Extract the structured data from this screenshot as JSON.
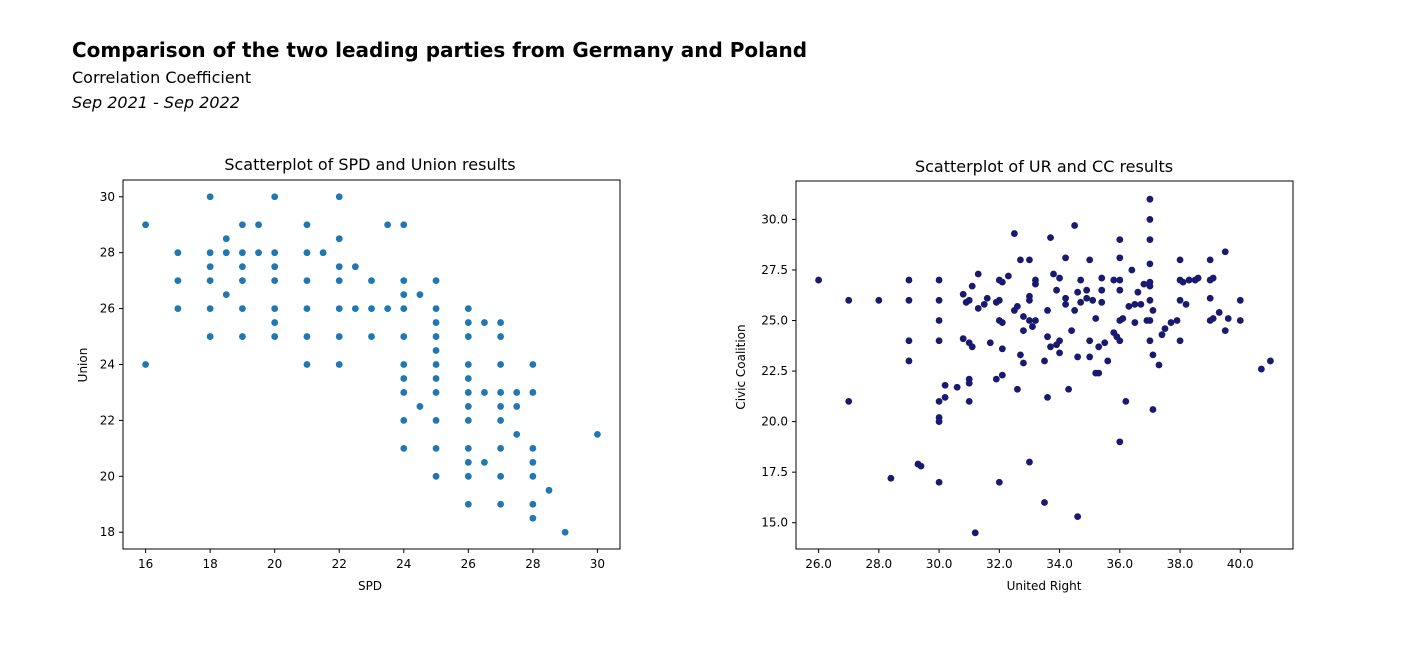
{
  "header": {
    "title": "Comparison of the two leading parties from Germany and Poland",
    "subtitle": "Correlation Coefficient",
    "period": "Sep 2021 - Sep 2022"
  },
  "chart_data": [
    {
      "type": "scatter",
      "title": "Scatterplot of SPD and Union results",
      "xlabel": "SPD",
      "ylabel": "Union",
      "xlim": [
        15.3,
        30.7
      ],
      "ylim": [
        17.4,
        30.6
      ],
      "xticks": [
        16,
        18,
        20,
        22,
        24,
        26,
        28,
        30
      ],
      "yticks": [
        18,
        20,
        22,
        24,
        26,
        28,
        30
      ],
      "tick_format": "int",
      "color": "#1f77b4",
      "points": [
        [
          16,
          29
        ],
        [
          16,
          24
        ],
        [
          17,
          28
        ],
        [
          17,
          27
        ],
        [
          17,
          26
        ],
        [
          18,
          30
        ],
        [
          18,
          28
        ],
        [
          18,
          27.5
        ],
        [
          18,
          27
        ],
        [
          18,
          26
        ],
        [
          18,
          25
        ],
        [
          18.5,
          28.5
        ],
        [
          18.5,
          28
        ],
        [
          18.5,
          26.5
        ],
        [
          19,
          29
        ],
        [
          19,
          28
        ],
        [
          19,
          27.5
        ],
        [
          19,
          27
        ],
        [
          19,
          26
        ],
        [
          19,
          25
        ],
        [
          19.5,
          29
        ],
        [
          19.5,
          28
        ],
        [
          20,
          30
        ],
        [
          20,
          28
        ],
        [
          20,
          27.5
        ],
        [
          20,
          27
        ],
        [
          20,
          26
        ],
        [
          20,
          25.5
        ],
        [
          20,
          25
        ],
        [
          21,
          29
        ],
        [
          21,
          28
        ],
        [
          21,
          27
        ],
        [
          21,
          26
        ],
        [
          21,
          25
        ],
        [
          21,
          24
        ],
        [
          21.5,
          28
        ],
        [
          22,
          30
        ],
        [
          22,
          28.5
        ],
        [
          22,
          27.5
        ],
        [
          22,
          27
        ],
        [
          22,
          26
        ],
        [
          22,
          25
        ],
        [
          22,
          24
        ],
        [
          22.5,
          27.5
        ],
        [
          22.5,
          26
        ],
        [
          23,
          27
        ],
        [
          23,
          26
        ],
        [
          23,
          25
        ],
        [
          23.5,
          29
        ],
        [
          23.5,
          26
        ],
        [
          24,
          29
        ],
        [
          24,
          27
        ],
        [
          24,
          26.5
        ],
        [
          24,
          26
        ],
        [
          24,
          25
        ],
        [
          24,
          24
        ],
        [
          24,
          23.5
        ],
        [
          24,
          23
        ],
        [
          24,
          22
        ],
        [
          24,
          21
        ],
        [
          24.5,
          26.5
        ],
        [
          24.5,
          22.5
        ],
        [
          25,
          27
        ],
        [
          25,
          26
        ],
        [
          25,
          25.5
        ],
        [
          25,
          25
        ],
        [
          25,
          24.5
        ],
        [
          25,
          24
        ],
        [
          25,
          23.5
        ],
        [
          25,
          23
        ],
        [
          25,
          22
        ],
        [
          25,
          21
        ],
        [
          25,
          20
        ],
        [
          26,
          26
        ],
        [
          26,
          25.5
        ],
        [
          26,
          25
        ],
        [
          26,
          24
        ],
        [
          26,
          23.5
        ],
        [
          26,
          23
        ],
        [
          26,
          22.5
        ],
        [
          26,
          22
        ],
        [
          26,
          21
        ],
        [
          26,
          20.5
        ],
        [
          26,
          20
        ],
        [
          26,
          19
        ],
        [
          26.5,
          25.5
        ],
        [
          26.5,
          23
        ],
        [
          26.5,
          20.5
        ],
        [
          27,
          25.5
        ],
        [
          27,
          25
        ],
        [
          27,
          24
        ],
        [
          27,
          23
        ],
        [
          27,
          22.5
        ],
        [
          27,
          22
        ],
        [
          27,
          21
        ],
        [
          27,
          20
        ],
        [
          27,
          19
        ],
        [
          27.5,
          23
        ],
        [
          27.5,
          22.5
        ],
        [
          27.5,
          21.5
        ],
        [
          28,
          24
        ],
        [
          28,
          23
        ],
        [
          28,
          21
        ],
        [
          28,
          20.5
        ],
        [
          28,
          20
        ],
        [
          28,
          19
        ],
        [
          28,
          18.5
        ],
        [
          28.5,
          19.5
        ],
        [
          29,
          18
        ],
        [
          30,
          21.5
        ]
      ]
    },
    {
      "type": "scatter",
      "title": "Scatterplot of UR and CC results",
      "xlabel": "United Right",
      "ylabel": "Civic Coalition",
      "xlim": [
        25.25,
        41.75
      ],
      "ylim": [
        13.7,
        31.9
      ],
      "xticks": [
        26,
        28,
        30,
        32,
        34,
        36,
        38,
        40
      ],
      "yticks": [
        15.0,
        17.5,
        20.0,
        22.5,
        25.0,
        27.5,
        30.0
      ],
      "tick_format": "one_decimal",
      "color": "#191970",
      "points": [
        [
          26,
          27
        ],
        [
          27,
          26
        ],
        [
          27,
          21
        ],
        [
          28,
          26
        ],
        [
          28.4,
          17.2
        ],
        [
          29,
          27
        ],
        [
          29,
          26
        ],
        [
          29,
          24
        ],
        [
          29,
          23
        ],
        [
          29.3,
          17.9
        ],
        [
          29.4,
          17.8
        ],
        [
          30,
          27
        ],
        [
          30,
          26
        ],
        [
          30,
          25
        ],
        [
          30,
          24
        ],
        [
          30,
          21
        ],
        [
          30,
          20.2
        ],
        [
          30,
          20
        ],
        [
          30,
          17
        ],
        [
          30.2,
          21.2
        ],
        [
          30.2,
          21.8
        ],
        [
          30.6,
          21.7
        ],
        [
          30.8,
          26.3
        ],
        [
          30.8,
          24.1
        ],
        [
          30.9,
          25.9
        ],
        [
          31,
          26
        ],
        [
          31,
          23.9
        ],
        [
          31,
          22.1
        ],
        [
          31,
          21.9
        ],
        [
          31,
          21
        ],
        [
          31.1,
          26.7
        ],
        [
          31.1,
          23.7
        ],
        [
          31.2,
          14.5
        ],
        [
          31.3,
          27.3
        ],
        [
          31.3,
          25.6
        ],
        [
          31.5,
          25.8
        ],
        [
          31.6,
          26.1
        ],
        [
          31.7,
          23.9
        ],
        [
          31.9,
          25.9
        ],
        [
          31.9,
          22.1
        ],
        [
          32,
          27
        ],
        [
          32,
          26
        ],
        [
          32,
          25
        ],
        [
          32,
          17
        ],
        [
          32.1,
          24.9
        ],
        [
          32.1,
          23.6
        ],
        [
          32.1,
          22.3
        ],
        [
          32.1,
          26.9
        ],
        [
          32.3,
          27.2
        ],
        [
          32.5,
          29.3
        ],
        [
          32.5,
          25.5
        ],
        [
          32.6,
          25.7
        ],
        [
          32.6,
          21.6
        ],
        [
          32.7,
          28
        ],
        [
          32.7,
          23.3
        ],
        [
          32.8,
          25.2
        ],
        [
          32.8,
          24.5
        ],
        [
          32.8,
          22.9
        ],
        [
          33,
          28
        ],
        [
          33,
          26.2
        ],
        [
          33,
          25
        ],
        [
          33,
          26
        ],
        [
          33,
          18
        ],
        [
          33.1,
          24.7
        ],
        [
          33.2,
          27
        ],
        [
          33.2,
          26.8
        ],
        [
          33.2,
          25
        ],
        [
          33.5,
          23
        ],
        [
          33.5,
          16
        ],
        [
          33.6,
          25.5
        ],
        [
          33.6,
          24.2
        ],
        [
          33.6,
          21.2
        ],
        [
          33.7,
          29.1
        ],
        [
          33.7,
          23.7
        ],
        [
          33.8,
          27.3
        ],
        [
          33.9,
          26.5
        ],
        [
          33.9,
          23.8
        ],
        [
          34,
          27.1
        ],
        [
          34,
          24
        ],
        [
          34,
          23.4
        ],
        [
          34.2,
          28.1
        ],
        [
          34.2,
          26.1
        ],
        [
          34.2,
          25.8
        ],
        [
          34.3,
          21.6
        ],
        [
          34.4,
          24.5
        ],
        [
          34.5,
          29.7
        ],
        [
          34.5,
          25.5
        ],
        [
          34.6,
          26.4
        ],
        [
          34.6,
          23.2
        ],
        [
          34.6,
          15.3
        ],
        [
          34.7,
          27
        ],
        [
          34.7,
          25.9
        ],
        [
          34.9,
          26.5
        ],
        [
          34.9,
          26.1
        ],
        [
          35,
          28
        ],
        [
          35,
          24
        ],
        [
          35,
          23.2
        ],
        [
          35.1,
          26
        ],
        [
          35.2,
          25.1
        ],
        [
          35.2,
          22.4
        ],
        [
          35.3,
          23.7
        ],
        [
          35.3,
          22.4
        ],
        [
          35.4,
          27.1
        ],
        [
          35.4,
          26.5
        ],
        [
          35.4,
          25.9
        ],
        [
          35.5,
          23.9
        ],
        [
          35.6,
          23
        ],
        [
          35.8,
          27
        ],
        [
          35.8,
          24.4
        ],
        [
          35.9,
          24.2
        ],
        [
          36,
          29
        ],
        [
          36,
          28.1
        ],
        [
          36,
          27
        ],
        [
          36,
          26.5
        ],
        [
          36,
          25
        ],
        [
          36,
          24
        ],
        [
          36,
          19
        ],
        [
          36.1,
          25.1
        ],
        [
          36.2,
          21
        ],
        [
          36.3,
          25.7
        ],
        [
          36.4,
          27.5
        ],
        [
          36.5,
          24.9
        ],
        [
          36.5,
          25.8
        ],
        [
          36.6,
          26.4
        ],
        [
          36.7,
          25.8
        ],
        [
          36.8,
          26.8
        ],
        [
          36.9,
          25
        ],
        [
          37,
          31
        ],
        [
          37,
          30
        ],
        [
          37,
          29
        ],
        [
          37,
          27.8
        ],
        [
          37,
          26.7
        ],
        [
          37,
          26
        ],
        [
          37,
          25
        ],
        [
          37,
          24
        ],
        [
          37,
          26.9
        ],
        [
          37.1,
          25.5
        ],
        [
          37.1,
          23.3
        ],
        [
          37.1,
          20.6
        ],
        [
          37.3,
          22.8
        ],
        [
          37.4,
          24.3
        ],
        [
          37.5,
          24.6
        ],
        [
          37.7,
          24.9
        ],
        [
          37.9,
          25
        ],
        [
          38,
          28
        ],
        [
          38,
          26
        ],
        [
          38,
          24
        ],
        [
          38,
          27
        ],
        [
          38.1,
          26.9
        ],
        [
          38.2,
          25.8
        ],
        [
          38.3,
          27
        ],
        [
          38.5,
          27
        ],
        [
          38.6,
          27.1
        ],
        [
          39,
          28
        ],
        [
          39,
          27
        ],
        [
          39,
          26.1
        ],
        [
          39,
          25
        ],
        [
          39.1,
          25.1
        ],
        [
          39.1,
          27.1
        ],
        [
          39.3,
          25.4
        ],
        [
          39.5,
          28.4
        ],
        [
          39.5,
          24.5
        ],
        [
          39.6,
          25.1
        ],
        [
          40,
          26
        ],
        [
          40,
          25
        ],
        [
          40.7,
          22.6
        ],
        [
          41,
          23
        ]
      ]
    }
  ]
}
